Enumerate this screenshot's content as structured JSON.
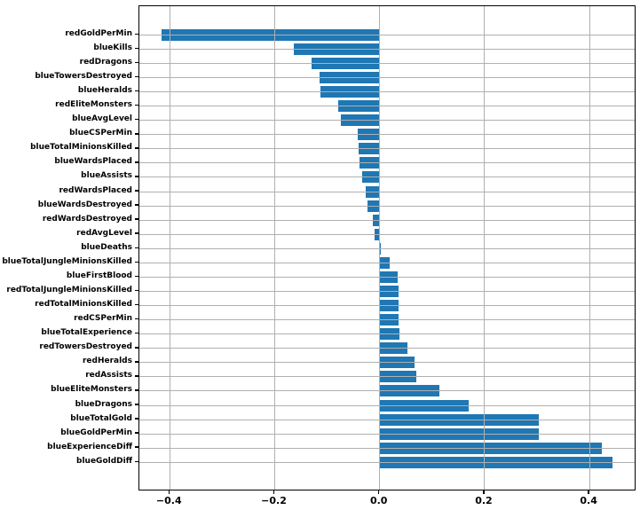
{
  "figure": {
    "background_color": "#ffffff",
    "spine_color": "#000000",
    "tick_color": "#000000"
  },
  "chart_data": {
    "type": "bar",
    "orientation": "horizontal",
    "title": "",
    "xlabel": "",
    "ylabel": "",
    "legend": "none",
    "grid": true,
    "grid_color": "#b0b0b0",
    "grid_above_bars": true,
    "bar_color": "#1f77b4",
    "xlim": [
      -0.458,
      0.486
    ],
    "x_ticks": [
      -0.4,
      -0.2,
      0.0,
      0.2,
      0.4
    ],
    "x_tick_labels": [
      "−0.4",
      "−0.2",
      "0.0",
      "0.2",
      "0.4"
    ],
    "categories": [
      "redGoldPerMin",
      "blueKills",
      "redDragons",
      "blueTowersDestroyed",
      "blueHeralds",
      "redEliteMonsters",
      "blueAvgLevel",
      "blueCSPerMin",
      "blueTotalMinionsKilled",
      "blueWardsPlaced",
      "blueAssists",
      "redWardsPlaced",
      "blueWardsDestroyed",
      "redWardsDestroyed",
      "redAvgLevel",
      "blueDeaths",
      "blueTotalJungleMinionsKilled",
      "blueFirstBlood",
      "redTotalJungleMinionsKilled",
      "redTotalMinionsKilled",
      "redCSPerMin",
      "blueTotalExperience",
      "redTowersDestroyed",
      "redHeralds",
      "redAssists",
      "blueEliteMonsters",
      "blueDragons",
      "blueTotalGold",
      "blueGoldPerMin",
      "blueExperienceDiff",
      "blueGoldDiff"
    ],
    "values": [
      -0.415,
      -0.163,
      -0.129,
      -0.114,
      -0.113,
      -0.079,
      -0.074,
      -0.041,
      -0.04,
      -0.039,
      -0.033,
      -0.026,
      -0.024,
      -0.013,
      -0.01,
      0.002,
      0.019,
      0.035,
      0.036,
      0.036,
      0.036,
      0.037,
      0.053,
      0.066,
      0.07,
      0.113,
      0.169,
      0.303,
      0.304,
      0.423,
      0.443
    ]
  }
}
